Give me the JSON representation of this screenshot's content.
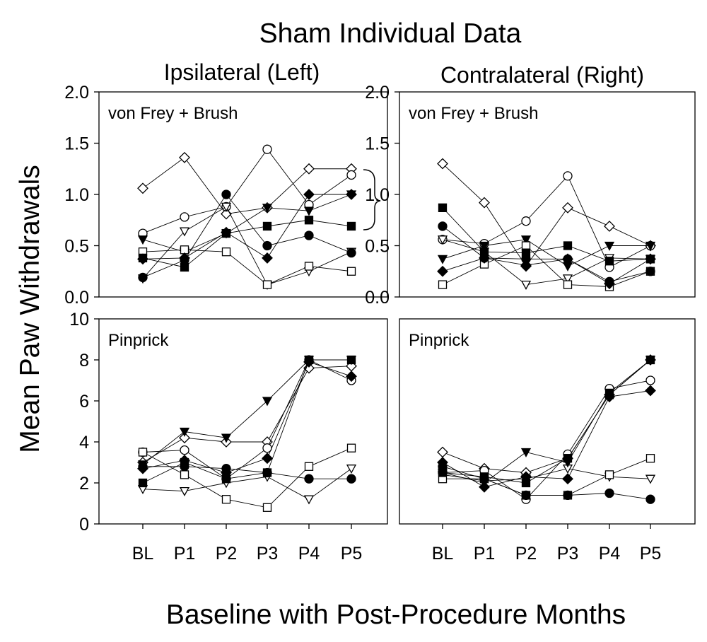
{
  "figure": {
    "title": "Sham Individual Data",
    "ylabel": "Mean Paw Withdrawals",
    "xlabel": "Baseline with Post-Procedure Months",
    "col_titles": [
      "Ipsilateral (Left)",
      "Contralateral (Right)"
    ]
  },
  "chart_data": [
    {
      "type": "line",
      "panel": "ipsi-vf",
      "annotation": "von Frey + Brush",
      "categories": [
        "BL",
        "P1",
        "P2",
        "P3",
        "P4",
        "P5"
      ],
      "ylim": [
        0.0,
        2.0
      ],
      "yticks": [
        "0.0",
        "0.5",
        "1.0",
        "1.5",
        "2.0"
      ],
      "series": [
        {
          "marker": "diamond-open",
          "values": [
            1.06,
            1.36,
            0.81,
            0.87,
            1.25,
            1.25
          ]
        },
        {
          "marker": "circle-open",
          "values": [
            0.62,
            0.78,
            0.88,
            1.44,
            0.9,
            1.19
          ]
        },
        {
          "marker": "triangle-down-open",
          "values": [
            0.18,
            0.64,
            0.88,
            0.12,
            0.25,
            0.44
          ]
        },
        {
          "marker": "triangle-down-filled",
          "values": [
            0.56,
            0.44,
            0.62,
            0.87,
            0.84,
            1.0
          ]
        },
        {
          "marker": "square-open",
          "values": [
            0.44,
            0.46,
            0.44,
            0.12,
            0.3,
            0.25
          ]
        },
        {
          "marker": "circle-filled",
          "values": [
            0.19,
            0.36,
            1.0,
            0.5,
            0.6,
            0.43
          ]
        },
        {
          "marker": "square-filled",
          "values": [
            0.38,
            0.29,
            0.62,
            0.69,
            0.75,
            0.69
          ]
        },
        {
          "marker": "diamond-filled",
          "values": [
            0.37,
            0.38,
            0.63,
            0.38,
            1.0,
            1.0
          ]
        }
      ]
    },
    {
      "type": "line",
      "panel": "contra-vf",
      "annotation": "von Frey + Brush",
      "categories": [
        "BL",
        "P1",
        "P2",
        "P3",
        "P4",
        "P5"
      ],
      "ylim": [
        0.0,
        2.0
      ],
      "yticks": [
        "0.0",
        "0.5",
        "1.0",
        "1.5",
        "2.0"
      ],
      "series": [
        {
          "marker": "diamond-open",
          "values": [
            1.3,
            0.92,
            0.3,
            0.87,
            0.69,
            0.5
          ]
        },
        {
          "marker": "circle-open",
          "values": [
            0.56,
            0.52,
            0.74,
            1.18,
            0.29,
            0.5
          ]
        },
        {
          "marker": "triangle-down-open",
          "values": [
            0.56,
            0.44,
            0.12,
            0.18,
            0.38,
            0.37
          ]
        },
        {
          "marker": "triangle-down-filled",
          "values": [
            0.37,
            0.5,
            0.56,
            0.3,
            0.5,
            0.5
          ]
        },
        {
          "marker": "square-open",
          "values": [
            0.12,
            0.32,
            0.5,
            0.12,
            0.1,
            0.25
          ]
        },
        {
          "marker": "circle-filled",
          "values": [
            0.69,
            0.38,
            0.37,
            0.37,
            0.15,
            0.25
          ]
        },
        {
          "marker": "square-filled",
          "values": [
            0.87,
            0.44,
            0.43,
            0.5,
            0.35,
            0.37
          ]
        },
        {
          "marker": "diamond-filled",
          "values": [
            0.25,
            0.38,
            0.31,
            0.37,
            0.13,
            0.37
          ]
        }
      ]
    },
    {
      "type": "line",
      "panel": "ipsi-pin",
      "annotation": "Pinprick",
      "categories": [
        "BL",
        "P1",
        "P2",
        "P3",
        "P4",
        "P5"
      ],
      "xticks": [
        "BL",
        "P1",
        "P2",
        "P3",
        "P4",
        "P5"
      ],
      "ylim": [
        0,
        10
      ],
      "yticks": [
        "0",
        "2",
        "4",
        "6",
        "8",
        "10"
      ],
      "series": [
        {
          "marker": "diamond-open",
          "values": [
            3.0,
            4.2,
            4.0,
            4.0,
            7.6,
            7.7
          ]
        },
        {
          "marker": "circle-open",
          "values": [
            3.5,
            3.6,
            2.2,
            3.7,
            8.0,
            7.0
          ]
        },
        {
          "marker": "triangle-down-open",
          "values": [
            1.7,
            1.6,
            2.0,
            2.3,
            1.2,
            2.7
          ]
        },
        {
          "marker": "triangle-down-filled",
          "values": [
            2.9,
            4.5,
            4.2,
            6.0,
            8.0,
            8.0
          ]
        },
        {
          "marker": "square-open",
          "values": [
            3.5,
            2.4,
            1.2,
            0.8,
            2.8,
            3.7
          ]
        },
        {
          "marker": "circle-filled",
          "values": [
            2.8,
            2.8,
            2.7,
            2.5,
            2.2,
            2.2
          ]
        },
        {
          "marker": "square-filled",
          "values": [
            2.0,
            3.0,
            2.2,
            2.5,
            8.0,
            8.0
          ]
        },
        {
          "marker": "diamond-filled",
          "values": [
            2.7,
            3.1,
            2.5,
            3.2,
            7.9,
            7.2
          ]
        }
      ]
    },
    {
      "type": "line",
      "panel": "contra-pin",
      "annotation": "Pinprick",
      "categories": [
        "BL",
        "P1",
        "P2",
        "P3",
        "P4",
        "P5"
      ],
      "xticks": [
        "BL",
        "P1",
        "P2",
        "P3",
        "P4",
        "P5"
      ],
      "ylim": [
        0,
        10
      ],
      "yticks": [],
      "series": [
        {
          "marker": "diamond-open",
          "values": [
            3.5,
            2.7,
            2.5,
            3.2,
            6.3,
            8.0
          ]
        },
        {
          "marker": "circle-open",
          "values": [
            2.5,
            2.6,
            1.2,
            3.4,
            6.6,
            7.0
          ]
        },
        {
          "marker": "triangle-down-open",
          "values": [
            2.4,
            2.1,
            2.2,
            2.7,
            2.3,
            2.2
          ]
        },
        {
          "marker": "triangle-down-filled",
          "values": [
            2.5,
            2.0,
            3.5,
            3.0,
            6.4,
            8.0
          ]
        },
        {
          "marker": "square-open",
          "values": [
            2.2,
            2.2,
            1.4,
            1.4,
            2.4,
            3.2
          ]
        },
        {
          "marker": "circle-filled",
          "values": [
            2.8,
            2.2,
            1.4,
            1.4,
            1.5,
            1.2
          ]
        },
        {
          "marker": "square-filled",
          "values": [
            2.5,
            2.3,
            2.0,
            3.2,
            6.3,
            8.0
          ]
        },
        {
          "marker": "diamond-filled",
          "values": [
            3.0,
            1.8,
            2.3,
            2.2,
            6.2,
            6.5
          ]
        }
      ]
    }
  ]
}
